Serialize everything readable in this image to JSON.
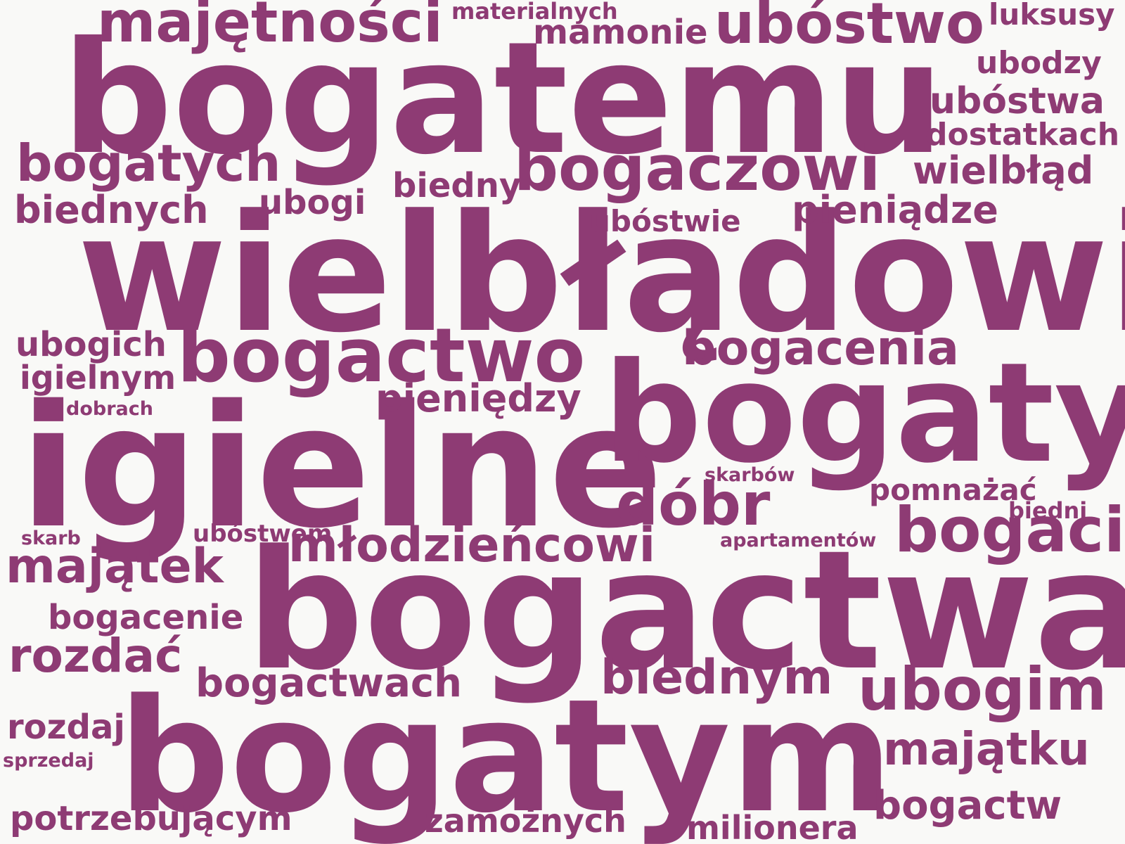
{
  "color": "#8e3b74",
  "background": "#f9f9f7",
  "words": {
    "bogatemu": "bogatemu",
    "wielbladowi": "wielbłądowi",
    "igielne": "igielne",
    "bogactwa": "bogactwa",
    "bogatym": "bogatym",
    "bogaty": "bogaty",
    "bogactwo": "bogactwo",
    "bogaczowi": "bogaczowi",
    "majetnosci": "majętności",
    "ubostwo": "ubóstwo",
    "bogatych": "bogatych",
    "bogaci": "bogaci",
    "ubogim": "ubogim",
    "dobr": "dóbr",
    "mlodziencowi": "młodzieńcowi",
    "bogacenia": "bogacenia",
    "biednym": "biednym",
    "majatek": "majątek",
    "majatku": "majątku",
    "rozdac": "rozdać",
    "bogactwach": "bogactwach",
    "bogactw": "bogactw",
    "pieniedzy": "pieniędzy",
    "wielblad": "wielbłąd",
    "pieniadze": "pieniądze",
    "biednych": "biednych",
    "potrzebujacym": "potrzebującym",
    "zamoznych": "zamożnych",
    "milionera": "milionera",
    "ubostwa": "ubóstwa",
    "mamonie": "mamonie",
    "ubogi": "ubogi",
    "biedny": "biedny",
    "ubogich": "ubogich",
    "igielnym": "igielnym",
    "bogacenie": "bogacenie",
    "rozdaj": "rozdaj",
    "dostatkach": "dostatkach",
    "ubodzy": "ubodzy",
    "luksusy": "luksusy",
    "pomnazac": "pomnażać",
    "ubostwie": "ubóstwie",
    "materialnych": "materialnych",
    "ubostwem": "ubóstwem",
    "skarbow": "skarbów",
    "biedni": "biedni",
    "apartamentow": "apartamentów",
    "dobrach": "dobrach",
    "skarb": "skarb",
    "sprzedaj": "sprzedaj"
  }
}
